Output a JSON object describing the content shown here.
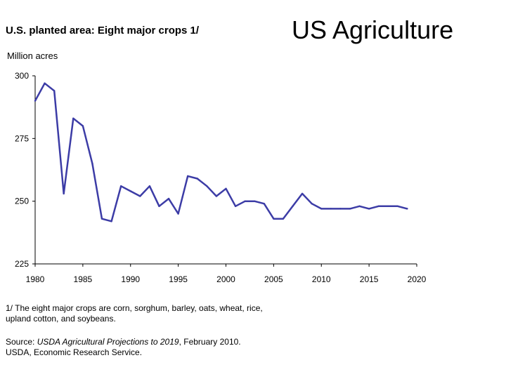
{
  "chart_data": {
    "type": "line",
    "title": "U.S. planted area: Eight major crops 1/",
    "ylabel": "Million acres",
    "xlabel": "",
    "xlim": [
      1980,
      2020
    ],
    "ylim": [
      225,
      300
    ],
    "xticks": [
      "1980",
      "1985",
      "1990",
      "1995",
      "2000",
      "2005",
      "2010",
      "2015",
      "2020"
    ],
    "yticks": [
      "300",
      "275",
      "250",
      "225"
    ],
    "series": [
      {
        "name": "Planted area",
        "color": "#3c3ca6",
        "x": [
          1980,
          1981,
          1982,
          1983,
          1984,
          1985,
          1986,
          1987,
          1988,
          1989,
          1990,
          1991,
          1992,
          1993,
          1994,
          1995,
          1996,
          1997,
          1998,
          1999,
          2000,
          2001,
          2002,
          2003,
          2004,
          2005,
          2006,
          2007,
          2008,
          2009,
          2010,
          2011,
          2012,
          2013,
          2014,
          2015,
          2016,
          2017,
          2018,
          2019
        ],
        "y": [
          290,
          297,
          294,
          253,
          283,
          280,
          265,
          243,
          242,
          256,
          254,
          252,
          256,
          248,
          251,
          245,
          260,
          259,
          256,
          252,
          255,
          248,
          250,
          250,
          249,
          243,
          243,
          248,
          253,
          249,
          247,
          247,
          247,
          247,
          248,
          247,
          248,
          248,
          248,
          247
        ]
      }
    ]
  },
  "slide": {
    "title": "US Agriculture"
  },
  "notes": {
    "footnote_line1": "1/ The eight major crops are corn, sorghum, barley, oats, wheat, rice,",
    "footnote_line2": "upland cotton, and soybeans.",
    "source_label": "Source: ",
    "source_publication": "USDA Agricultural Projections to 2019",
    "source_date": ", February 2010.",
    "source_line2": "USDA, Economic Research Service."
  }
}
